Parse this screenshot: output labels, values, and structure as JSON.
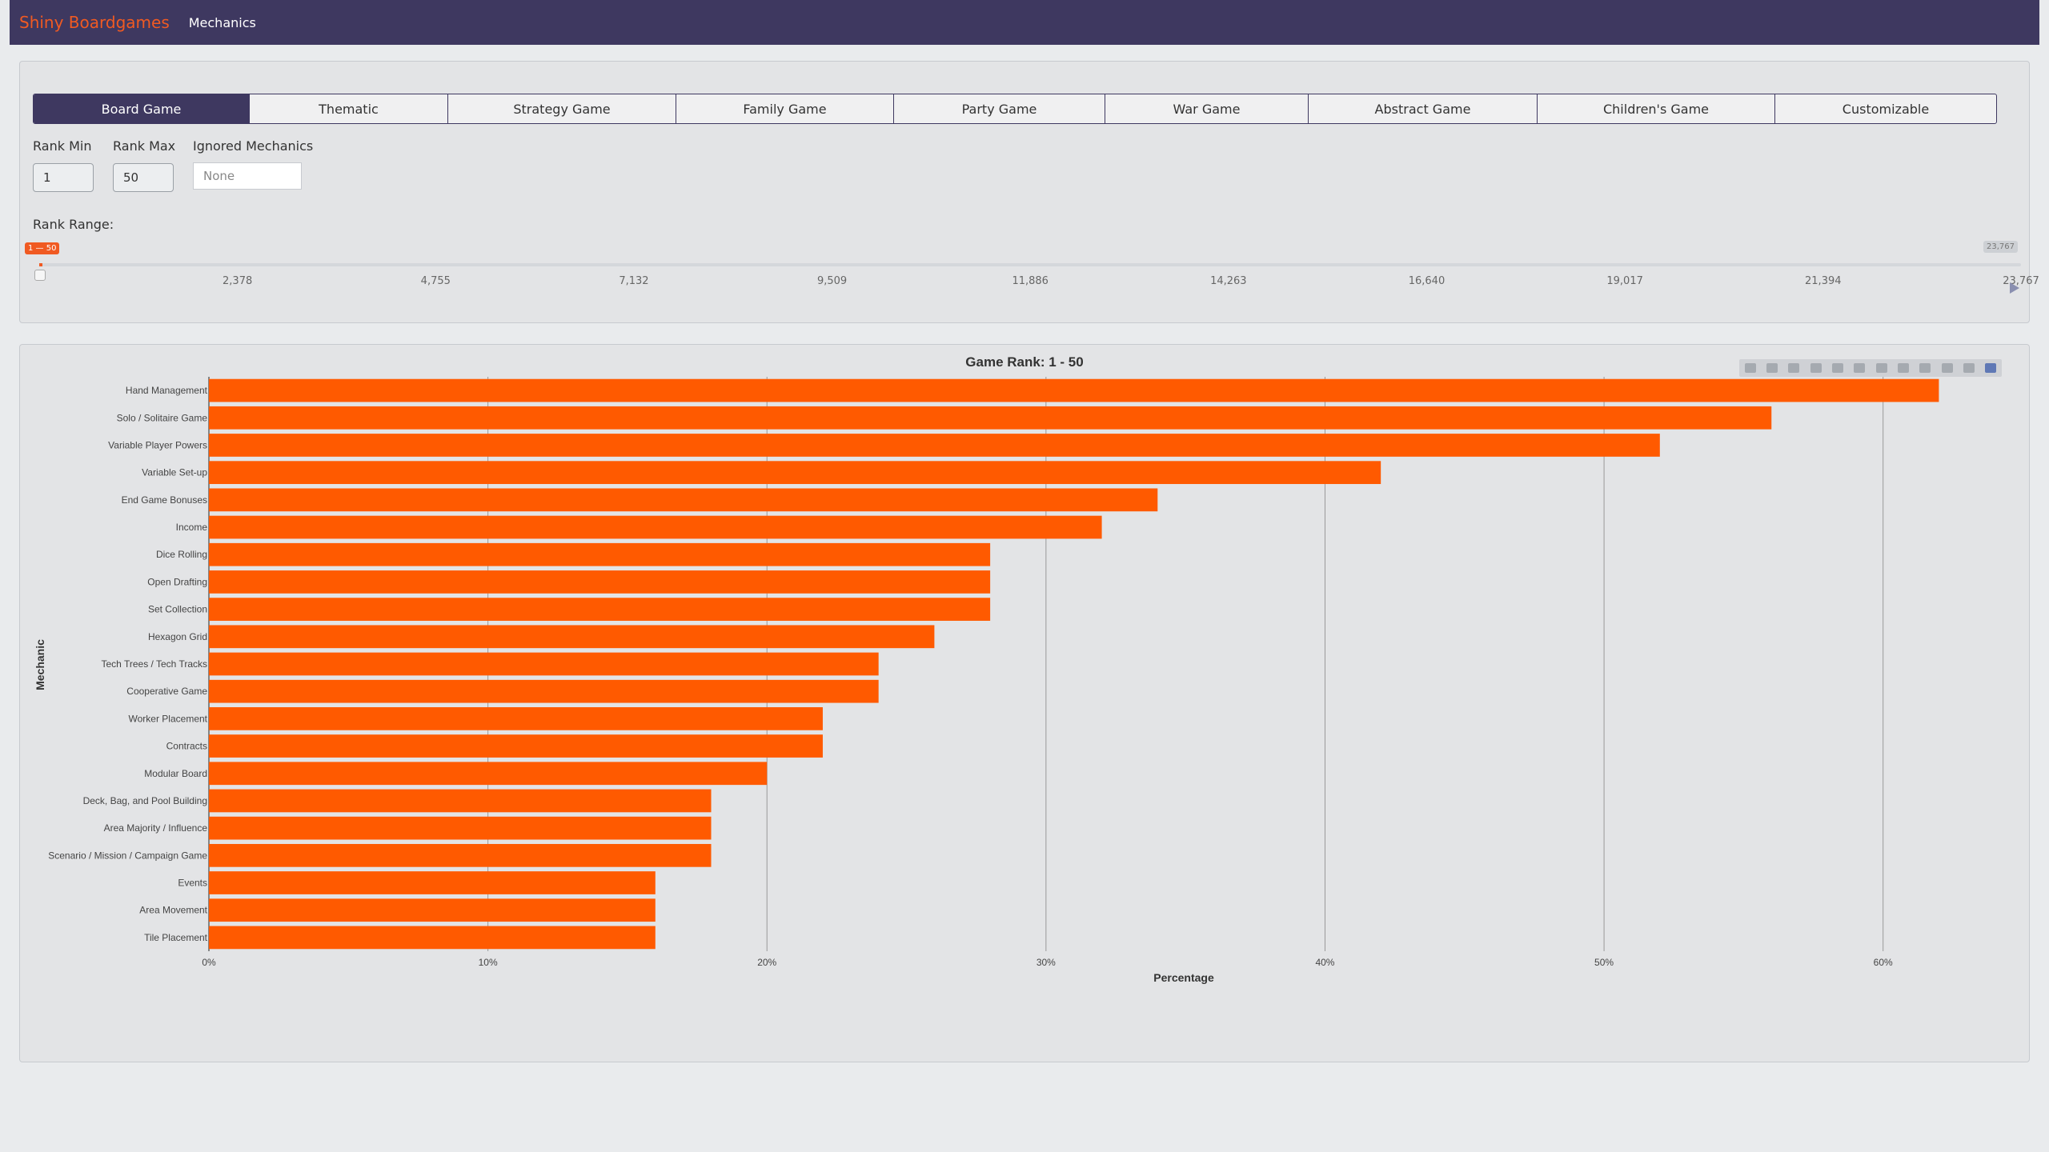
{
  "navbar": {
    "brand": "Shiny Boardgames",
    "link": "Mechanics"
  },
  "tabs": [
    {
      "label": "Board Game",
      "active": true
    },
    {
      "label": "Thematic",
      "active": false
    },
    {
      "label": "Strategy Game",
      "active": false
    },
    {
      "label": "Family Game",
      "active": false
    },
    {
      "label": "Party Game",
      "active": false
    },
    {
      "label": "War Game",
      "active": false
    },
    {
      "label": "Abstract Game",
      "active": false
    },
    {
      "label": "Children's Game",
      "active": false
    },
    {
      "label": "Customizable",
      "active": false
    }
  ],
  "filters": {
    "rank_min_label": "Rank Min",
    "rank_min_value": "1",
    "rank_max_label": "Rank Max",
    "rank_max_value": "50",
    "ignored_label": "Ignored Mechanics",
    "ignored_placeholder": "None"
  },
  "slider": {
    "label": "Rank Range:",
    "selection": "1 — 50",
    "max_label": "23,767",
    "ticks": [
      "2,378",
      "4,755",
      "7,132",
      "9,509",
      "11,886",
      "14,263",
      "16,640",
      "19,017",
      "21,394",
      "23,767"
    ],
    "min": 1,
    "max": 23767,
    "from": 1,
    "to": 50
  },
  "colors": {
    "accent": "#f05a22",
    "navbar": "#3e3860",
    "bar": "#ff5a00"
  },
  "modebar_icons": [
    "camera-icon",
    "zoom-icon",
    "pan-icon",
    "box-select-icon",
    "lasso-icon",
    "zoom-in-icon",
    "zoom-out-icon",
    "autoscale-icon",
    "reset-axes-icon",
    "spike-lines-icon",
    "compare-hover-icon",
    "plotly-logo-icon"
  ],
  "chart_data": {
    "type": "bar",
    "orientation": "horizontal",
    "title": "Game Rank: 1 - 50",
    "xlabel": "Percentage",
    "ylabel": "Mechanic",
    "xlim": [
      0,
      65
    ],
    "xticks": [
      0,
      10,
      20,
      30,
      40,
      50,
      60
    ],
    "xtick_labels": [
      "0%",
      "10%",
      "20%",
      "30%",
      "40%",
      "50%",
      "60%"
    ],
    "grid": true,
    "categories": [
      "Hand Management",
      "Solo / Solitaire Game",
      "Variable Player Powers",
      "Variable Set-up",
      "End Game Bonuses",
      "Income",
      "Dice Rolling",
      "Open Drafting",
      "Set Collection",
      "Hexagon Grid",
      "Tech Trees / Tech Tracks",
      "Cooperative Game",
      "Worker Placement",
      "Contracts",
      "Modular Board",
      "Deck, Bag, and Pool Building",
      "Area Majority / Influence",
      "Scenario / Mission / Campaign Game",
      "Events",
      "Area Movement",
      "Tile Placement"
    ],
    "values": [
      62,
      56,
      52,
      42,
      34,
      32,
      28,
      28,
      28,
      26,
      24,
      24,
      22,
      22,
      20,
      18,
      18,
      18,
      16,
      16,
      16
    ]
  }
}
